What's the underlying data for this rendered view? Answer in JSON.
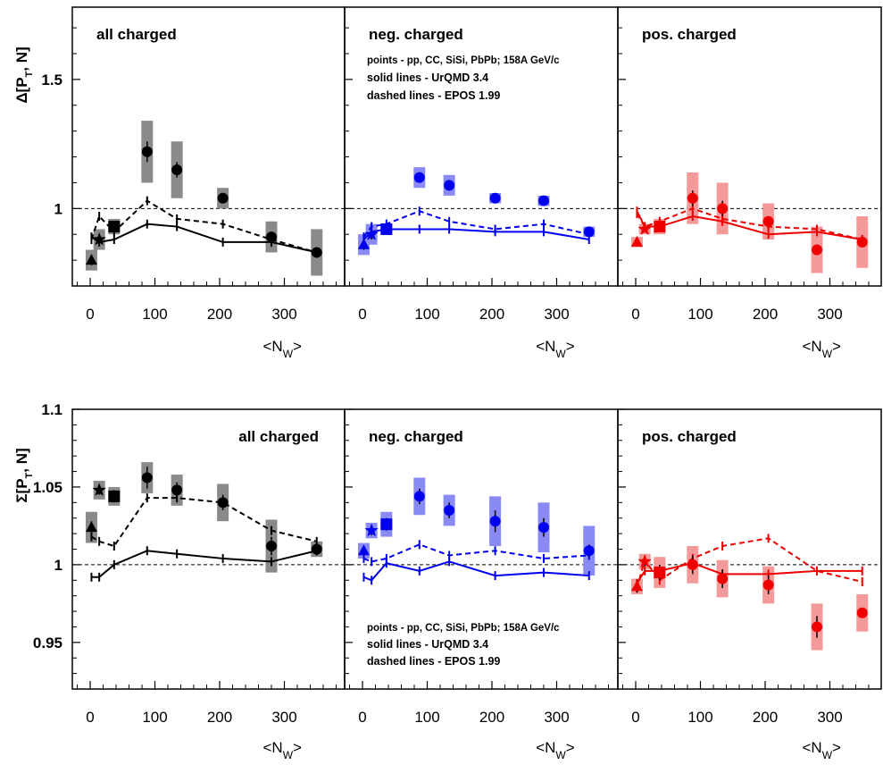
{
  "chart_data": [
    {
      "type": "scatter",
      "ylabel": "Δ[P_T, N]",
      "ylim": [
        0.7,
        1.78
      ],
      "ytick_labels": [
        "1",
        "1.5"
      ],
      "panels": [
        {
          "label": "all charged",
          "color": "#000000",
          "band_color": "#8a8a8a",
          "xlabel": "<N_W>",
          "xlim": [
            -25,
            385
          ],
          "xtick_labels": [
            "0",
            "100",
            "200",
            "300"
          ],
          "data": [
            {
              "system": "pp",
              "marker": "triangle",
              "x": 2,
              "y": 0.8,
              "err": 0.02,
              "sys": 0.04
            },
            {
              "system": "CC",
              "marker": "star",
              "x": 14,
              "y": 0.88,
              "err": 0.02,
              "sys": 0.04
            },
            {
              "system": "SiSi",
              "marker": "square",
              "x": 37,
              "y": 0.93,
              "err": 0.02,
              "sys": 0.03
            },
            {
              "system": "PbPb",
              "marker": "circle",
              "x": [
                88,
                134,
                205,
                280,
                350
              ],
              "y": [
                1.22,
                1.15,
                1.04,
                0.89,
                0.83
              ],
              "err": [
                0.04,
                0.03,
                0.02,
                0.02,
                0.02
              ],
              "sys": [
                0.12,
                0.11,
                0.04,
                0.06,
                0.09
              ]
            }
          ],
          "urqmd": {
            "x": [
              2,
              14,
              37,
              88,
              134,
              205,
              280,
              350
            ],
            "y": [
              0.89,
              0.87,
              0.88,
              0.94,
              0.93,
              0.87,
              0.87,
              0.83
            ]
          },
          "epos": {
            "x": [
              2,
              14,
              37,
              88,
              134,
              205,
              280,
              350
            ],
            "y": [
              0.88,
              0.97,
              0.91,
              1.03,
              0.96,
              0.94,
              0.88,
              0.83
            ]
          }
        },
        {
          "label": "neg. charged",
          "color": "#0000ee",
          "band_color": "#8a8af5",
          "xlabel": "<N_W>",
          "xlim": [
            -25,
            385
          ],
          "xtick_labels": [
            "0",
            "100",
            "200",
            "300"
          ],
          "legend_lines": [
            "points - pp, CC, SiSi, PbPb; 158A GeV/c",
            "solid lines - UrQMD 3.4",
            "dashed lines - EPOS 1.99"
          ],
          "data": [
            {
              "system": "pp",
              "marker": "triangle",
              "x": 2,
              "y": 0.86,
              "err": 0.02,
              "sys": 0.04
            },
            {
              "system": "CC",
              "marker": "star",
              "x": 14,
              "y": 0.9,
              "err": 0.02,
              "sys": 0.04
            },
            {
              "system": "SiSi",
              "marker": "square",
              "x": 37,
              "y": 0.92,
              "err": 0.01,
              "sys": 0.02
            },
            {
              "system": "PbPb",
              "marker": "circle",
              "x": [
                88,
                134,
                205,
                280,
                350
              ],
              "y": [
                1.12,
                1.09,
                1.04,
                1.03,
                0.91
              ],
              "err": [
                0.02,
                0.02,
                0.01,
                0.01,
                0.01
              ],
              "sys": [
                0.04,
                0.04,
                0.02,
                0.02,
                0.02
              ]
            }
          ],
          "urqmd": {
            "x": [
              2,
              14,
              37,
              88,
              134,
              205,
              280,
              350
            ],
            "y": [
              0.88,
              0.91,
              0.92,
              0.92,
              0.92,
              0.91,
              0.91,
              0.88
            ]
          },
          "epos": {
            "x": [
              2,
              14,
              37,
              88,
              134,
              205,
              280,
              350
            ],
            "y": [
              0.89,
              0.93,
              0.94,
              0.99,
              0.95,
              0.92,
              0.94,
              0.9
            ]
          }
        },
        {
          "label": "pos. charged",
          "color": "#ee0000",
          "band_color": "#f59a9a",
          "xlabel": "<N_W>",
          "xlim": [
            -25,
            385
          ],
          "xtick_labels": [
            "0",
            "100",
            "200",
            "300"
          ],
          "data": [
            {
              "system": "pp",
              "marker": "triangle",
              "x": 2,
              "y": 0.87,
              "err": 0.01,
              "sys": 0.02
            },
            {
              "system": "CC",
              "marker": "star",
              "x": 14,
              "y": 0.92,
              "err": 0.01,
              "sys": 0.02
            },
            {
              "system": "SiSi",
              "marker": "square",
              "x": 37,
              "y": 0.93,
              "err": 0.01,
              "sys": 0.03
            },
            {
              "system": "PbPb",
              "marker": "circle",
              "x": [
                88,
                134,
                205,
                280,
                350
              ],
              "y": [
                1.04,
                1.0,
                0.95,
                0.84,
                0.87
              ],
              "err": [
                0.03,
                0.03,
                0.02,
                0.02,
                0.02
              ],
              "sys": [
                0.1,
                0.1,
                0.07,
                0.09,
                0.1
              ]
            }
          ],
          "urqmd": {
            "x": [
              2,
              14,
              37,
              88,
              134,
              205,
              280,
              350
            ],
            "y": [
              0.99,
              0.93,
              0.93,
              0.97,
              0.95,
              0.9,
              0.91,
              0.88
            ]
          },
          "epos": {
            "x": [
              2,
              14,
              37,
              88,
              134,
              205,
              280,
              350
            ],
            "y": [
              0.98,
              0.93,
              0.95,
              1.0,
              0.96,
              0.93,
              0.92,
              0.88
            ]
          }
        }
      ]
    },
    {
      "type": "scatter",
      "ylabel": "Σ[P_T, N]",
      "ylim": [
        0.92,
        1.1
      ],
      "ytick_labels": [
        "0.95",
        "1",
        "1.05",
        "1.1"
      ],
      "panels": [
        {
          "label": "all charged",
          "color": "#000000",
          "band_color": "#8a8a8a",
          "xlabel": "<N_W>",
          "xlim": [
            -25,
            385
          ],
          "xtick_labels": [
            "0",
            "100",
            "200",
            "300"
          ],
          "data": [
            {
              "system": "pp",
              "marker": "triangle",
              "x": 2,
              "y": 1.024,
              "err": 0.004,
              "sys": 0.01
            },
            {
              "system": "CC",
              "marker": "star",
              "x": 14,
              "y": 1.048,
              "err": 0.003,
              "sys": 0.006
            },
            {
              "system": "SiSi",
              "marker": "square",
              "x": 37,
              "y": 1.044,
              "err": 0.004,
              "sys": 0.006
            },
            {
              "system": "PbPb",
              "marker": "circle",
              "x": [
                88,
                134,
                205,
                280,
                350
              ],
              "y": [
                1.056,
                1.048,
                1.04,
                1.012,
                1.01
              ],
              "err": [
                0.007,
                0.005,
                0.005,
                0.006,
                0.004
              ],
              "sys": [
                0.01,
                0.01,
                0.012,
                0.017,
                0.005
              ]
            }
          ],
          "urqmd": {
            "x": [
              2,
              14,
              37,
              88,
              134,
              205,
              280,
              350
            ],
            "y": [
              0.992,
              0.992,
              1.0,
              1.009,
              1.007,
              1.004,
              1.002,
              1.009
            ]
          },
          "epos": {
            "x": [
              2,
              14,
              37,
              88,
              134,
              205,
              280,
              350
            ],
            "y": [
              1.018,
              1.015,
              1.012,
              1.043,
              1.043,
              1.04,
              1.022,
              1.015
            ]
          }
        },
        {
          "label": "neg. charged",
          "color": "#0000ee",
          "band_color": "#8a8af5",
          "xlabel": "<N_W>",
          "xlim": [
            -25,
            385
          ],
          "xtick_labels": [
            "0",
            "100",
            "200",
            "300"
          ],
          "legend_lines": [
            "points - pp, CC, SiSi, PbPb; 158A GeV/c",
            "solid lines - UrQMD 3.4",
            "dashed lines - EPOS 1.99"
          ],
          "data": [
            {
              "system": "pp",
              "marker": "triangle",
              "x": 2,
              "y": 1.009,
              "err": 0.003,
              "sys": 0.005
            },
            {
              "system": "CC",
              "marker": "star",
              "x": 14,
              "y": 1.022,
              "err": 0.003,
              "sys": 0.005
            },
            {
              "system": "SiSi",
              "marker": "square",
              "x": 37,
              "y": 1.026,
              "err": 0.004,
              "sys": 0.008
            },
            {
              "system": "PbPb",
              "marker": "circle",
              "x": [
                88,
                134,
                205,
                280,
                350
              ],
              "y": [
                1.044,
                1.035,
                1.028,
                1.024,
                1.009
              ],
              "err": [
                0.005,
                0.005,
                0.007,
                0.006,
                0.004
              ],
              "sys": [
                0.012,
                0.01,
                0.016,
                0.016,
                0.016
              ]
            }
          ],
          "urqmd": {
            "x": [
              2,
              14,
              37,
              88,
              134,
              205,
              280,
              350
            ],
            "y": [
              0.992,
              0.99,
              1.001,
              0.996,
              1.002,
              0.993,
              0.995,
              0.993
            ]
          },
          "epos": {
            "x": [
              2,
              14,
              37,
              88,
              134,
              205,
              280,
              350
            ],
            "y": [
              1.004,
              1.002,
              1.004,
              1.013,
              1.006,
              1.009,
              1.004,
              1.006
            ]
          }
        },
        {
          "label": "pos. charged",
          "color": "#ee0000",
          "band_color": "#f59a9a",
          "xlabel": "<N_W>",
          "xlim": [
            -25,
            385
          ],
          "xtick_labels": [
            "0",
            "100",
            "200",
            "300"
          ],
          "data": [
            {
              "system": "pp",
              "marker": "triangle",
              "x": 2,
              "y": 0.986,
              "err": 0.004,
              "sys": 0.005
            },
            {
              "system": "CC",
              "marker": "star",
              "x": 14,
              "y": 1.002,
              "err": 0.003,
              "sys": 0.005
            },
            {
              "system": "SiSi",
              "marker": "square",
              "x": 37,
              "y": 0.995,
              "err": 0.005,
              "sys": 0.01
            },
            {
              "system": "PbPb",
              "marker": "circle",
              "x": [
                88,
                134,
                205,
                280,
                350
              ],
              "y": [
                1.0,
                0.991,
                0.987,
                0.96,
                0.969
              ],
              "err": [
                0.006,
                0.006,
                0.006,
                0.007,
                0.003
              ],
              "sys": [
                0.012,
                0.012,
                0.012,
                0.015,
                0.012
              ]
            }
          ],
          "urqmd": {
            "x": [
              2,
              14,
              37,
              88,
              134,
              205,
              280,
              350
            ],
            "y": [
              0.988,
              0.996,
              0.996,
              1.001,
              0.994,
              0.994,
              0.996,
              0.996
            ]
          },
          "epos": {
            "x": [
              2,
              14,
              37,
              88,
              134,
              205,
              280,
              350
            ],
            "y": [
              0.985,
              1.003,
              0.99,
              1.004,
              1.012,
              1.017,
              0.996,
              0.989
            ]
          }
        }
      ]
    }
  ]
}
